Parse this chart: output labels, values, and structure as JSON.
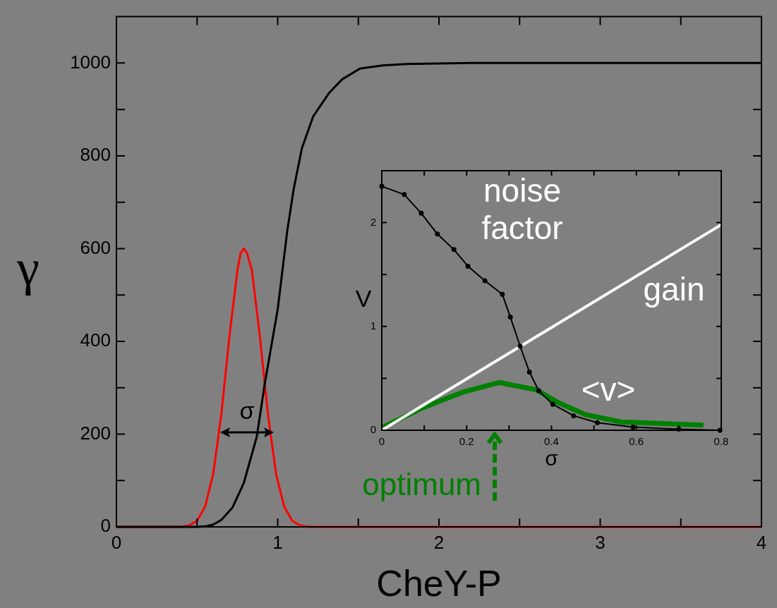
{
  "chart_data": [
    {
      "type": "line",
      "xlabel": "CheY-P",
      "ylabel": "γ",
      "xlim": [
        0,
        4
      ],
      "ylim": [
        0,
        1100
      ],
      "xticks": [
        0,
        {
          "value": 0.5,
          "label": null
        },
        1,
        {
          "value": 1.5,
          "label": null
        },
        2,
        {
          "value": 2.5,
          "label": null
        },
        3,
        {
          "value": 3.5,
          "label": null
        },
        4
      ],
      "yticks": [
        0,
        {
          "value": 100,
          "label": null
        },
        200,
        {
          "value": 300,
          "label": null
        },
        400,
        {
          "value": 500,
          "label": null
        },
        600,
        {
          "value": 700,
          "label": null
        },
        800,
        {
          "value": 900,
          "label": null
        },
        1000
      ],
      "grid": false,
      "legend": false,
      "marker": "none",
      "series": [
        {
          "color": "#000000",
          "x": [
            0,
            0.5,
            0.55,
            0.6,
            0.65,
            0.72,
            0.79,
            0.87,
            0.92,
            1.0,
            1.06,
            1.1,
            1.15,
            1.22,
            1.32,
            1.4,
            1.51,
            1.65,
            1.8,
            2.2,
            4
          ],
          "values": [
            0,
            0,
            1,
            5,
            15,
            42,
            95,
            194,
            309,
            469,
            640,
            730,
            816,
            885,
            936,
            965,
            988,
            995,
            998,
            1000,
            1000
          ]
        },
        {
          "color": "#ff0000",
          "x": [
            0,
            0.4,
            0.45,
            0.5,
            0.55,
            0.6,
            0.65,
            0.7,
            0.75,
            0.77,
            0.79,
            0.81,
            0.84,
            0.89,
            0.94,
            0.99,
            1.04,
            1.09,
            1.14,
            1.2,
            4
          ],
          "values": [
            0,
            0,
            3,
            13,
            44,
            114,
            241,
            409,
            553,
            590,
            600,
            590,
            553,
            409,
            241,
            114,
            44,
            13,
            3,
            0,
            0
          ]
        }
      ],
      "annotations": [
        "σ",
        "optimum"
      ]
    },
    {
      "type": "line",
      "xlabel": "σ",
      "ylabel": "V",
      "xlim": [
        0,
        0.8
      ],
      "ylim": [
        0,
        2.5
      ],
      "xticks": [
        0,
        {
          "value": 0.1,
          "label": null
        },
        0.2,
        {
          "value": 0.3,
          "label": null
        },
        0.4,
        {
          "value": 0.5,
          "label": null
        },
        0.6,
        {
          "value": 0.7,
          "label": null
        },
        0.8
      ],
      "yticks": [
        0,
        {
          "value": 0.5,
          "label": null
        },
        1,
        {
          "value": 1.5,
          "label": null
        },
        2
      ],
      "grid": false,
      "legend": false,
      "marker": "none",
      "series": [
        {
          "color": "#000000",
          "marker": "circle",
          "x": [
            0,
            0.053,
            0.093,
            0.131,
            0.17,
            0.203,
            0.243,
            0.284,
            0.303,
            0.326,
            0.348,
            0.37,
            0.403,
            0.452,
            0.508,
            0.592,
            0.7,
            0.797
          ],
          "values": [
            2.35,
            2.27,
            2.09,
            1.89,
            1.74,
            1.58,
            1.44,
            1.31,
            1.09,
            0.81,
            0.56,
            0.38,
            0.25,
            0.14,
            0.073,
            0.03,
            0.01,
            0
          ]
        },
        {
          "color": "#ffffff",
          "x": [
            0,
            0.8
          ],
          "values": [
            0,
            1.98
          ]
        },
        {
          "color": "#008000",
          "x": [
            0.003,
            0.093,
            0.193,
            0.276,
            0.364,
            0.414,
            0.48,
            0.564,
            0.758
          ],
          "values": [
            0.03,
            0.21,
            0.37,
            0.46,
            0.39,
            0.27,
            0.15,
            0.08,
            0.05
          ]
        }
      ],
      "annotations": [
        "noise factor",
        "gain",
        "<v>"
      ]
    }
  ]
}
